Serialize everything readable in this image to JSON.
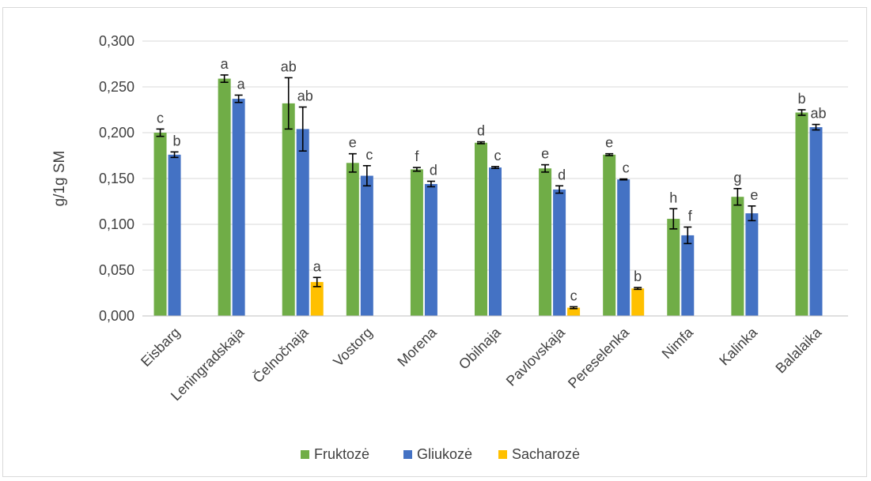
{
  "chart_data": {
    "type": "bar",
    "title": "",
    "xlabel": "",
    "ylabel": "g/1g SM",
    "ylim": [
      0,
      0.3
    ],
    "yticks": [
      0,
      0.05,
      0.1,
      0.15,
      0.2,
      0.25,
      0.3
    ],
    "ytick_labels": [
      "0,000",
      "0,050",
      "0,100",
      "0,150",
      "0,200",
      "0,250",
      "0,300"
    ],
    "grid": true,
    "legend_position": "bottom",
    "categories": [
      "Eisbarg",
      "Leningradskaja",
      "Čelnočnaja",
      "Vostorg",
      "Morena",
      "Obilnaja",
      "Pavlovskaja",
      "Pereselenka",
      "Nimfa",
      "Kalinka",
      "Balalaika"
    ],
    "series": [
      {
        "name": "Fruktozė",
        "color": "#70ad47",
        "values": [
          0.2,
          0.259,
          0.232,
          0.167,
          0.16,
          0.189,
          0.161,
          0.176,
          0.106,
          0.13,
          0.222
        ],
        "errors": [
          0.004,
          0.004,
          0.028,
          0.01,
          0.002,
          0.001,
          0.004,
          0.001,
          0.011,
          0.009,
          0.003
        ],
        "letters": [
          "c",
          "a",
          "ab",
          "e",
          "f",
          "d",
          "e",
          "e",
          "h",
          "g",
          "b"
        ]
      },
      {
        "name": "Gliukozė",
        "color": "#4472c4",
        "values": [
          0.176,
          0.237,
          0.204,
          0.153,
          0.144,
          0.162,
          0.138,
          0.149,
          0.088,
          0.112,
          0.206
        ],
        "errors": [
          0.003,
          0.004,
          0.024,
          0.011,
          0.003,
          0.001,
          0.004,
          0.0005,
          0.009,
          0.008,
          0.003
        ],
        "letters": [
          "b",
          "a",
          "ab",
          "c",
          "d",
          "c",
          "d",
          "c",
          "f",
          "e",
          "ab"
        ]
      },
      {
        "name": "Sacharozė",
        "color": "#ffc000",
        "values": [
          0,
          0,
          0.037,
          0,
          0,
          0,
          0.009,
          0.03,
          0,
          0,
          0
        ],
        "errors": [
          0,
          0,
          0.005,
          0,
          0,
          0,
          0.001,
          0.001,
          0,
          0,
          0
        ],
        "letters": [
          "",
          "",
          "a",
          "",
          "",
          "",
          "c",
          "b",
          "",
          "",
          ""
        ]
      }
    ]
  }
}
